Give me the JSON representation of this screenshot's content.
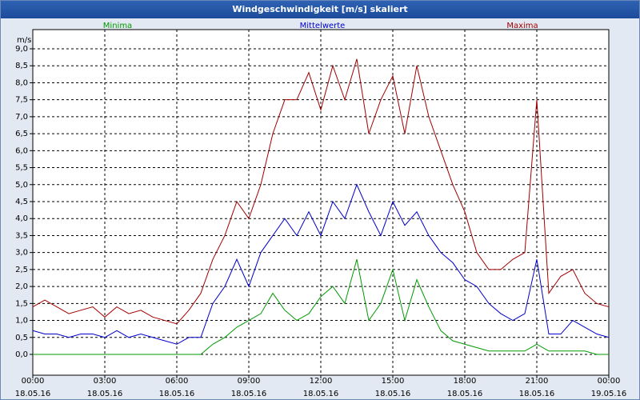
{
  "window": {
    "title": "Windgeschwindigkeit [m/s] skaliert"
  },
  "colors": {
    "min": "#009900",
    "mean": "#0000cc",
    "max": "#a00000",
    "grid": "#000000"
  },
  "chart_data": {
    "type": "line",
    "title": "Windgeschwindigkeit [m/s] skaliert",
    "ylabel": "m/s",
    "ylim": [
      0,
      9
    ],
    "xlim": [
      "18.05.16 00:00",
      "19.05.16 00:00"
    ],
    "grid": true,
    "legend": "top",
    "y_ticks": [
      "0,0",
      "0,5",
      "1,0",
      "1,5",
      "2,0",
      "2,5",
      "3,0",
      "3,5",
      "4,0",
      "4,5",
      "5,0",
      "5,5",
      "6,0",
      "6,5",
      "7,0",
      "7,5",
      "8,0",
      "8,5",
      "9,0"
    ],
    "x_ticks": [
      {
        "time": "00:00",
        "date": "18.05.16"
      },
      {
        "time": "03:00",
        "date": "18.05.16"
      },
      {
        "time": "06:00",
        "date": "18.05.16"
      },
      {
        "time": "09:00",
        "date": "18.05.16"
      },
      {
        "time": "12:00",
        "date": "18.05.16"
      },
      {
        "time": "15:00",
        "date": "18.05.16"
      },
      {
        "time": "18:00",
        "date": "18.05.16"
      },
      {
        "time": "21:00",
        "date": "18.05.16"
      },
      {
        "time": "00:00",
        "date": "19.05.16"
      }
    ],
    "x_hours": [
      0,
      0.5,
      1,
      1.5,
      2,
      2.5,
      3,
      3.5,
      4,
      4.5,
      5,
      5.5,
      6,
      6.5,
      7,
      7.5,
      8,
      8.5,
      9,
      9.5,
      10,
      10.5,
      11,
      11.5,
      12,
      12.5,
      13,
      13.5,
      14,
      14.5,
      15,
      15.5,
      16,
      16.5,
      17,
      17.5,
      18,
      18.5,
      19,
      19.5,
      20,
      20.5,
      21,
      21.5,
      22,
      22.5,
      23,
      23.5,
      24
    ],
    "series": [
      {
        "name": "Minima",
        "key": "min",
        "values": [
          0,
          0,
          0,
          0,
          0,
          0,
          0,
          0,
          0,
          0,
          0,
          0,
          0,
          0,
          0,
          0.3,
          0.5,
          0.8,
          1,
          1.2,
          1.8,
          1.3,
          1,
          1.2,
          1.7,
          2,
          1.5,
          2.8,
          1,
          1.5,
          2.5,
          1,
          2.2,
          1.4,
          0.7,
          0.4,
          0.3,
          0.2,
          0.1,
          0.1,
          0.1,
          0.1,
          0.3,
          0.1,
          0.1,
          0.1,
          0.1,
          0,
          0
        ]
      },
      {
        "name": "Mittelwerte",
        "key": "mean",
        "values": [
          0.7,
          0.6,
          0.6,
          0.5,
          0.6,
          0.6,
          0.5,
          0.7,
          0.5,
          0.6,
          0.5,
          0.4,
          0.3,
          0.5,
          0.5,
          1.5,
          2,
          2.8,
          2,
          3,
          3.5,
          4,
          3.5,
          4.2,
          3.5,
          4.5,
          4,
          5,
          4.2,
          3.5,
          4.5,
          3.8,
          4.2,
          3.5,
          3,
          2.7,
          2.2,
          2,
          1.5,
          1.2,
          1,
          1.2,
          2.8,
          0.6,
          0.6,
          1,
          0.8,
          0.6,
          0.5
        ]
      },
      {
        "name": "Maxima",
        "key": "max",
        "values": [
          1.4,
          1.6,
          1.4,
          1.2,
          1.3,
          1.4,
          1.1,
          1.4,
          1.2,
          1.3,
          1.1,
          1,
          0.9,
          1.3,
          1.8,
          2.8,
          3.5,
          4.5,
          4,
          5,
          6.5,
          7.5,
          7.5,
          8.3,
          7.2,
          8.5,
          7.5,
          8.7,
          6.5,
          7.5,
          8.2,
          6.5,
          8.5,
          7,
          6,
          5,
          4.2,
          3,
          2.5,
          2.5,
          2.8,
          3,
          7.5,
          1.8,
          2.3,
          2.5,
          1.8,
          1.5,
          1.4
        ]
      }
    ]
  }
}
